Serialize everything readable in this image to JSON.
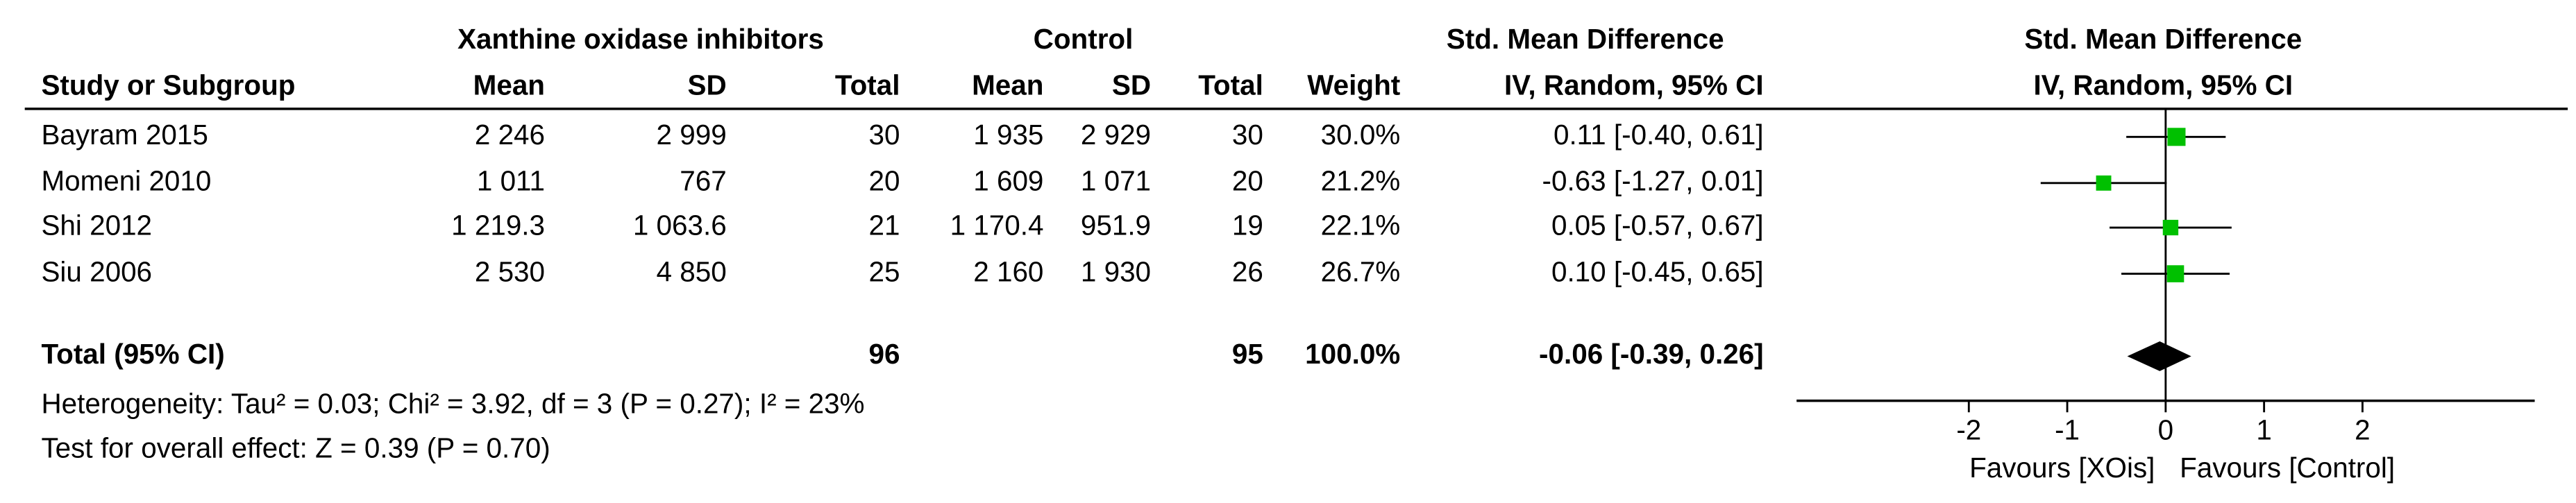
{
  "table": {
    "group_headers": [
      "Xanthine oxidase inhibitors",
      "Control",
      "Std. Mean Difference"
    ],
    "columns": [
      "Study or Subgroup",
      "Mean",
      "SD",
      "Total",
      "Mean",
      "SD",
      "Total",
      "Weight",
      "IV, Random, 95% CI"
    ],
    "rows": [
      [
        "Bayram 2015",
        "2 246",
        "2 999",
        "30",
        "1 935",
        "2 929",
        "30",
        "30.0%",
        "0.11 [-0.40, 0.61]"
      ],
      [
        "Momeni 2010",
        "1 011",
        "767",
        "20",
        "1 609",
        "1 071",
        "20",
        "21.2%",
        "-0.63 [-1.27, 0.01]"
      ],
      [
        "Shi 2012",
        "1 219.3",
        "1 063.6",
        "21",
        "1 170.4",
        "951.9",
        "19",
        "22.1%",
        "0.05 [-0.57, 0.67]"
      ],
      [
        "Siu 2006",
        "2 530",
        "4 850",
        "25",
        "2 160",
        "1 930",
        "26",
        "26.7%",
        "0.10 [-0.45, 0.65]"
      ]
    ],
    "total": {
      "label": "Total (95% CI)",
      "xoi_total": "96",
      "control_total": "95",
      "weight": "100.0%",
      "ci": "-0.06 [-0.39, 0.26]"
    },
    "heterogeneity": "Heterogeneity: Tau² = 0.03; Chi² = 3.92, df = 3 (P = 0.27); I² = 23%",
    "overall_effect": "Test for overall effect: Z = 0.39 (P = 0.70)"
  },
  "chart_data": {
    "type": "forest",
    "title": "Std. Mean Difference",
    "subtitle": "IV, Random, 95% CI",
    "values": [
      0.11,
      -0.63,
      0.05,
      0.1
    ],
    "ci_low": [
      -0.4,
      -1.27,
      -0.57,
      -0.45
    ],
    "ci_high": [
      0.61,
      0.01,
      0.67,
      0.65
    ],
    "weights": [
      30.0,
      21.2,
      22.1,
      26.7
    ],
    "summary_value": -0.06,
    "summary_ci_low": -0.39,
    "summary_ci_high": 0.26,
    "color": "#00c000",
    "xlim": [
      -3.75,
      3.75
    ],
    "xticks": [
      -2,
      -1,
      0,
      1,
      2
    ],
    "x_label_left": "Favours [XOis]",
    "x_label_right": "Favours [Control]"
  }
}
